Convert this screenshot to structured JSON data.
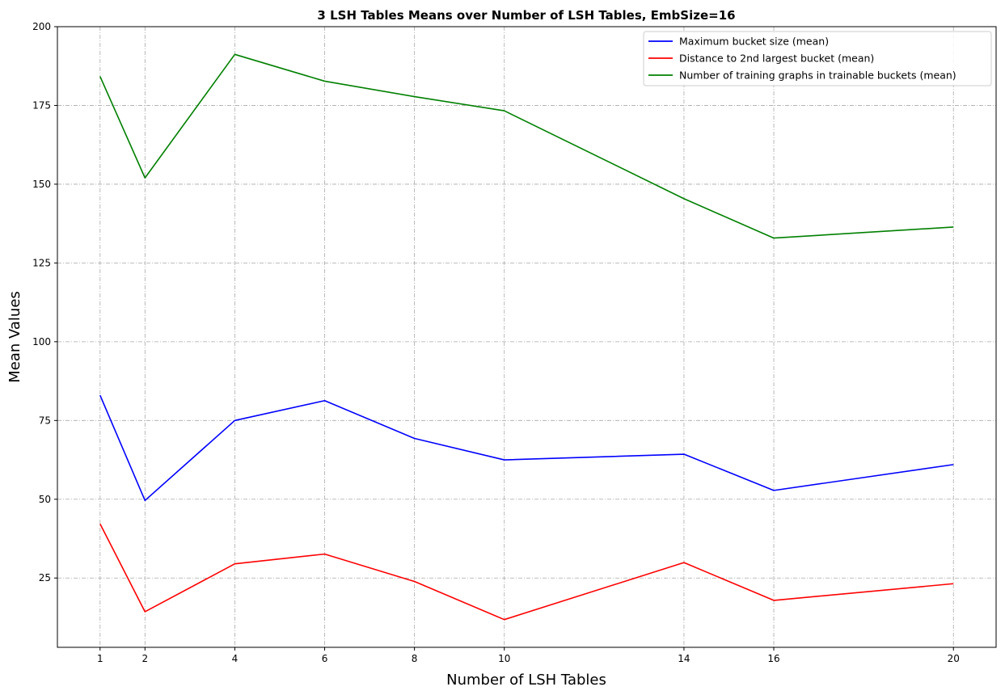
{
  "chart_data": {
    "type": "line",
    "title": "3 LSH Tables Means over Number of LSH Tables, EmbSize=16",
    "xlabel": "Number of LSH Tables",
    "ylabel": "Mean Values",
    "x": [
      1,
      2,
      4,
      6,
      8,
      10,
      14,
      16,
      20
    ],
    "xlim": [
      0.05,
      20.95
    ],
    "ylim": [
      3,
      200
    ],
    "xticks": [
      1,
      2,
      4,
      6,
      8,
      10,
      14,
      16,
      20
    ],
    "yticks": [
      25,
      50,
      75,
      100,
      125,
      150,
      175,
      200
    ],
    "grid": true,
    "legend_position": "top-right",
    "series": [
      {
        "name": "Maximum bucket size (mean)",
        "color": "#0000ff",
        "values": [
          83.0,
          49.6,
          75.0,
          81.3,
          69.3,
          62.5,
          64.3,
          52.8,
          61.0
        ]
      },
      {
        "name": "Distance to 2nd largest bucket (mean)",
        "color": "#ff0000",
        "values": [
          42.2,
          14.3,
          29.5,
          32.6,
          23.9,
          11.8,
          29.9,
          17.9,
          23.2
        ]
      },
      {
        "name": "Number of training graphs in trainable buckets (mean)",
        "color": "#008000",
        "values": [
          184.2,
          152.0,
          191.2,
          182.7,
          177.8,
          173.3,
          145.4,
          132.9,
          136.4
        ]
      }
    ]
  }
}
